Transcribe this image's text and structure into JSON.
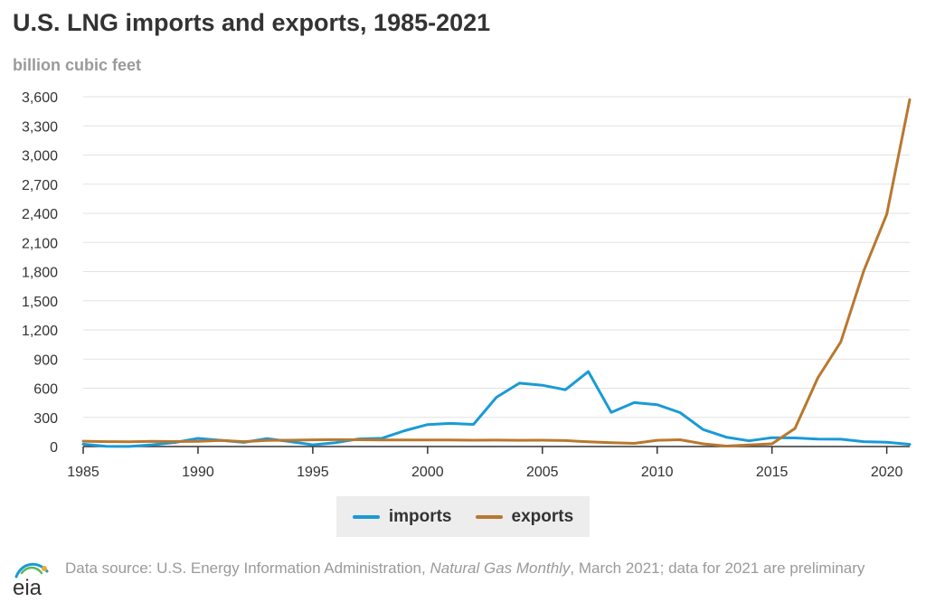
{
  "title": "U.S. LNG imports and exports, 1985-2021",
  "unit_label": "billion cubic feet",
  "legend": [
    {
      "name": "imports",
      "color": "#1a9ad6"
    },
    {
      "name": "exports",
      "color": "#b8782f"
    }
  ],
  "footer": {
    "logo_text": "eia",
    "source_prefix": "Data source: U.S. Energy Information Administration, ",
    "source_italic": "Natural Gas Monthly",
    "source_suffix": ", March 2021; data for 2021 are preliminary"
  },
  "chart_data": {
    "type": "line",
    "x": [
      1985,
      1986,
      1987,
      1988,
      1989,
      1990,
      1991,
      1992,
      1993,
      1994,
      1995,
      1996,
      1997,
      1998,
      1999,
      2000,
      2001,
      2002,
      2003,
      2004,
      2005,
      2006,
      2007,
      2008,
      2009,
      2010,
      2011,
      2012,
      2013,
      2014,
      2015,
      2016,
      2017,
      2018,
      2019,
      2020,
      2021
    ],
    "series": [
      {
        "name": "imports",
        "color": "#1a9ad6",
        "values": [
          24,
          2,
          1,
          18,
          42,
          84,
          64,
          43,
          82,
          51,
          18,
          40,
          78,
          85,
          163,
          226,
          238,
          228,
          507,
          652,
          631,
          584,
          771,
          352,
          452,
          431,
          349,
          175,
          97,
          59,
          91,
          88,
          77,
          75,
          50,
          45,
          22
        ]
      },
      {
        "name": "exports",
        "color": "#b8782f",
        "values": [
          55,
          50,
          49,
          53,
          51,
          53,
          63,
          50,
          62,
          65,
          69,
          71,
          70,
          68,
          67,
          68,
          68,
          65,
          66,
          64,
          65,
          61,
          48,
          39,
          33,
          64,
          70,
          28,
          5,
          16,
          28,
          186,
          707,
          1077,
          1808,
          2390,
          3570
        ]
      }
    ],
    "title": "U.S. LNG imports and exports, 1985-2021",
    "ylabel": "billion cubic feet",
    "xlim": [
      1985,
      2021
    ],
    "ylim": [
      0,
      3600
    ],
    "yticks": [
      0,
      300,
      600,
      900,
      1200,
      1500,
      1800,
      2100,
      2400,
      2700,
      3000,
      3300,
      3600
    ],
    "yticks_labels": [
      "0",
      "300",
      "600",
      "900",
      "1,200",
      "1,500",
      "1,800",
      "2,100",
      "2,400",
      "2,700",
      "3,000",
      "3,300",
      "3,600"
    ],
    "xticks": [
      1985,
      1990,
      1995,
      2000,
      2005,
      2010,
      2015,
      2020
    ],
    "xticks_labels": [
      "1985",
      "1990",
      "1995",
      "2000",
      "2005",
      "2010",
      "2015",
      "2020"
    ],
    "grid": true,
    "legend_position": "bottom"
  }
}
